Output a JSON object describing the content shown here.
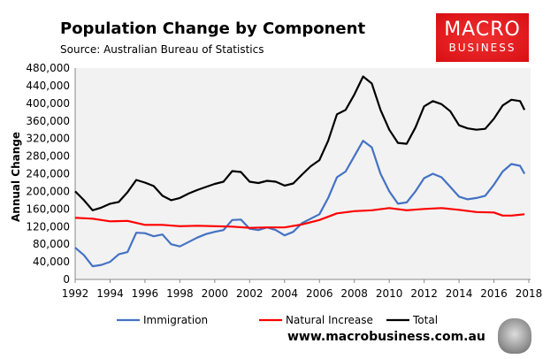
{
  "header": {
    "title": "Population Change by Component",
    "source": "Source: Australian Bureau of Statistics",
    "logo_line1": "MACRO",
    "logo_line2": "BUSINESS"
  },
  "footer": {
    "url": "www.macrobusiness.com.au"
  },
  "chart_data": {
    "type": "line",
    "title": "Population Change by Component",
    "xlabel": "",
    "ylabel": "Annual Change",
    "xlim": [
      1992,
      2018
    ],
    "ylim": [
      0,
      480000
    ],
    "xticks": [
      "1992",
      "1994",
      "1996",
      "1998",
      "2000",
      "2002",
      "2004",
      "2006",
      "2008",
      "2010",
      "2012",
      "2014",
      "2016",
      "2018"
    ],
    "yticks": [
      "0",
      "40,000",
      "80,000",
      "120,000",
      "160,000",
      "200,000",
      "240,000",
      "280,000",
      "320,000",
      "360,000",
      "400,000",
      "440,000",
      "480,000"
    ],
    "legend_position": "bottom",
    "series": [
      {
        "name": "Immigration",
        "color": "#4472c4",
        "x": [
          1992,
          1992.5,
          1993,
          1993.5,
          1994,
          1994.5,
          1995,
          1995.5,
          1996,
          1996.5,
          1997,
          1997.5,
          1998,
          1998.5,
          1999,
          1999.5,
          2000,
          2000.5,
          2001,
          2001.5,
          2002,
          2002.5,
          2003,
          2003.5,
          2004,
          2004.5,
          2005,
          2005.5,
          2006,
          2006.5,
          2007,
          2007.5,
          2008,
          2008.5,
          2009,
          2009.5,
          2010,
          2010.5,
          2011,
          2011.5,
          2012,
          2012.5,
          2013,
          2013.5,
          2014,
          2014.5,
          2015,
          2015.5,
          2016,
          2016.5,
          2017,
          2017.5,
          2017.75
        ],
        "values": [
          72000,
          55000,
          30000,
          33000,
          40000,
          57000,
          62000,
          106000,
          105000,
          98000,
          102000,
          80000,
          75000,
          85000,
          95000,
          103000,
          108000,
          112000,
          135000,
          136000,
          115000,
          112000,
          118000,
          112000,
          100000,
          108000,
          128000,
          138000,
          148000,
          185000,
          232000,
          245000,
          280000,
          315000,
          300000,
          240000,
          200000,
          172000,
          175000,
          200000,
          230000,
          240000,
          232000,
          210000,
          188000,
          182000,
          185000,
          190000,
          215000,
          245000,
          262000,
          258000,
          240000
        ]
      },
      {
        "name": "Natural Increase",
        "color": "#ff0000",
        "x": [
          1992,
          1993,
          1994,
          1995,
          1996,
          1997,
          1998,
          1999,
          2000,
          2001,
          2002,
          2003,
          2004,
          2005,
          2006,
          2007,
          2008,
          2009,
          2010,
          2011,
          2012,
          2013,
          2014,
          2015,
          2016,
          2016.5,
          2017,
          2017.75
        ],
        "values": [
          140000,
          138000,
          132000,
          133000,
          124000,
          124000,
          121000,
          122000,
          121000,
          120000,
          117000,
          118000,
          118000,
          125000,
          135000,
          150000,
          155000,
          157000,
          162000,
          157000,
          160000,
          162000,
          158000,
          153000,
          152000,
          145000,
          145000,
          148000
        ]
      },
      {
        "name": "Total",
        "color": "#000000",
        "x": [
          1992,
          1992.5,
          1993,
          1993.5,
          1994,
          1994.5,
          1995,
          1995.5,
          1996,
          1996.5,
          1997,
          1997.5,
          1998,
          1998.5,
          1999,
          1999.5,
          2000,
          2000.5,
          2001,
          2001.5,
          2002,
          2002.5,
          2003,
          2003.5,
          2004,
          2004.5,
          2005,
          2005.5,
          2006,
          2006.5,
          2007,
          2007.5,
          2008,
          2008.5,
          2009,
          2009.5,
          2010,
          2010.5,
          2011,
          2011.5,
          2012,
          2012.5,
          2013,
          2013.5,
          2014,
          2014.5,
          2015,
          2015.5,
          2016,
          2016.5,
          2017,
          2017.5,
          2017.75
        ],
        "values": [
          200000,
          180000,
          157000,
          163000,
          172000,
          176000,
          198000,
          226000,
          220000,
          212000,
          190000,
          180000,
          185000,
          195000,
          203000,
          210000,
          217000,
          222000,
          246000,
          244000,
          222000,
          219000,
          224000,
          222000,
          213000,
          218000,
          238000,
          257000,
          271000,
          315000,
          375000,
          385000,
          420000,
          461000,
          445000,
          385000,
          340000,
          310000,
          308000,
          345000,
          393000,
          405000,
          398000,
          382000,
          350000,
          343000,
          340000,
          342000,
          365000,
          395000,
          408000,
          405000,
          385000
        ]
      }
    ]
  }
}
